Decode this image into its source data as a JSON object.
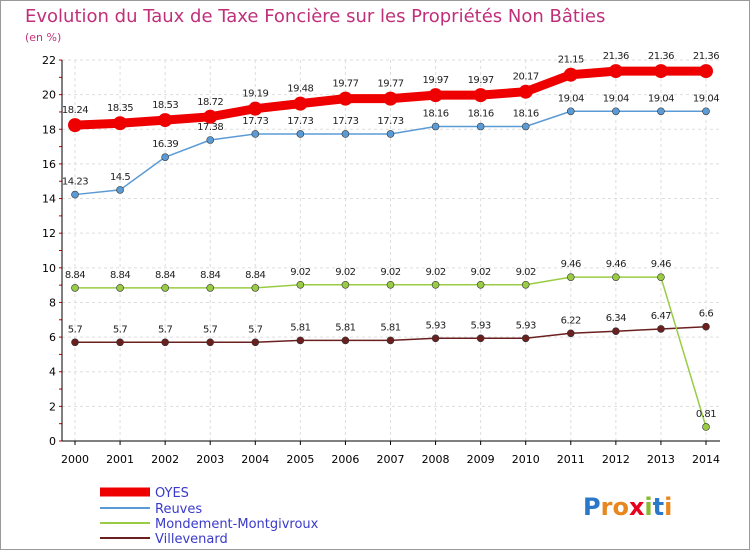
{
  "chart_data": {
    "type": "line",
    "title": "Evolution du Taux de Taxe Foncière sur les Propriétés Non Bâties",
    "ylabel": "(en %)",
    "xlabel": "",
    "categories": [
      "2000",
      "2001",
      "2002",
      "2003",
      "2004",
      "2005",
      "2006",
      "2007",
      "2008",
      "2009",
      "2010",
      "2011",
      "2012",
      "2013",
      "2014"
    ],
    "ylim": [
      0,
      22
    ],
    "yticks": [
      0,
      2,
      4,
      6,
      8,
      10,
      12,
      14,
      16,
      18,
      20,
      22
    ],
    "grid": true,
    "legend_position": "bottom-left",
    "series": [
      {
        "name": "OYES",
        "color": "#ee0000",
        "values": [
          18.24,
          18.35,
          18.53,
          18.72,
          19.19,
          19.48,
          19.77,
          19.77,
          19.97,
          19.97,
          20.17,
          21.15,
          21.36,
          21.36,
          21.36
        ],
        "labels": [
          "18.24",
          "18.35",
          "18.53",
          "18.72",
          "19.19",
          "19.48",
          "19.77",
          "19.77",
          "19.97",
          "19.97",
          "20.17",
          "21.15",
          "21.36",
          "21.36",
          "21.36"
        ]
      },
      {
        "name": "Reuves",
        "color": "#5b9bd5",
        "values": [
          14.23,
          14.5,
          16.39,
          17.38,
          17.73,
          17.73,
          17.73,
          17.73,
          18.16,
          18.16,
          18.16,
          19.04,
          19.04,
          19.04,
          19.04
        ],
        "labels": [
          "14.23",
          "14.5",
          "16.39",
          "17.38",
          "17.73",
          "17.73",
          "17.73",
          "17.73",
          "18.16",
          "18.16",
          "18.16",
          "19.04",
          "19.04",
          "19.04",
          "19.04"
        ]
      },
      {
        "name": "Mondement-Montgivroux",
        "color": "#99cc44",
        "values": [
          8.84,
          8.84,
          8.84,
          8.84,
          8.84,
          9.02,
          9.02,
          9.02,
          9.02,
          9.02,
          9.02,
          9.46,
          9.46,
          9.46,
          0.81
        ],
        "labels": [
          "8.84",
          "8.84",
          "8.84",
          "8.84",
          "8.84",
          "9.02",
          "9.02",
          "9.02",
          "9.02",
          "9.02",
          "9.02",
          "9.46",
          "9.46",
          "9.46",
          "0.81"
        ]
      },
      {
        "name": "Villevenard",
        "color": "#6b1f1f",
        "values": [
          5.7,
          5.7,
          5.7,
          5.7,
          5.7,
          5.81,
          5.81,
          5.81,
          5.93,
          5.93,
          5.93,
          6.22,
          6.34,
          6.47,
          6.6
        ],
        "labels": [
          "5.7",
          "5.7",
          "5.7",
          "5.7",
          "5.7",
          "5.81",
          "5.81",
          "5.81",
          "5.93",
          "5.93",
          "5.93",
          "6.22",
          "6.34",
          "6.47",
          "6.6"
        ]
      }
    ]
  },
  "logo": {
    "text": "Proxiti",
    "colors": [
      "#2a78c8",
      "#e8871e",
      "#e8871e",
      "#e8001e",
      "#8ab832",
      "#2a78c8",
      "#e8871e"
    ]
  }
}
